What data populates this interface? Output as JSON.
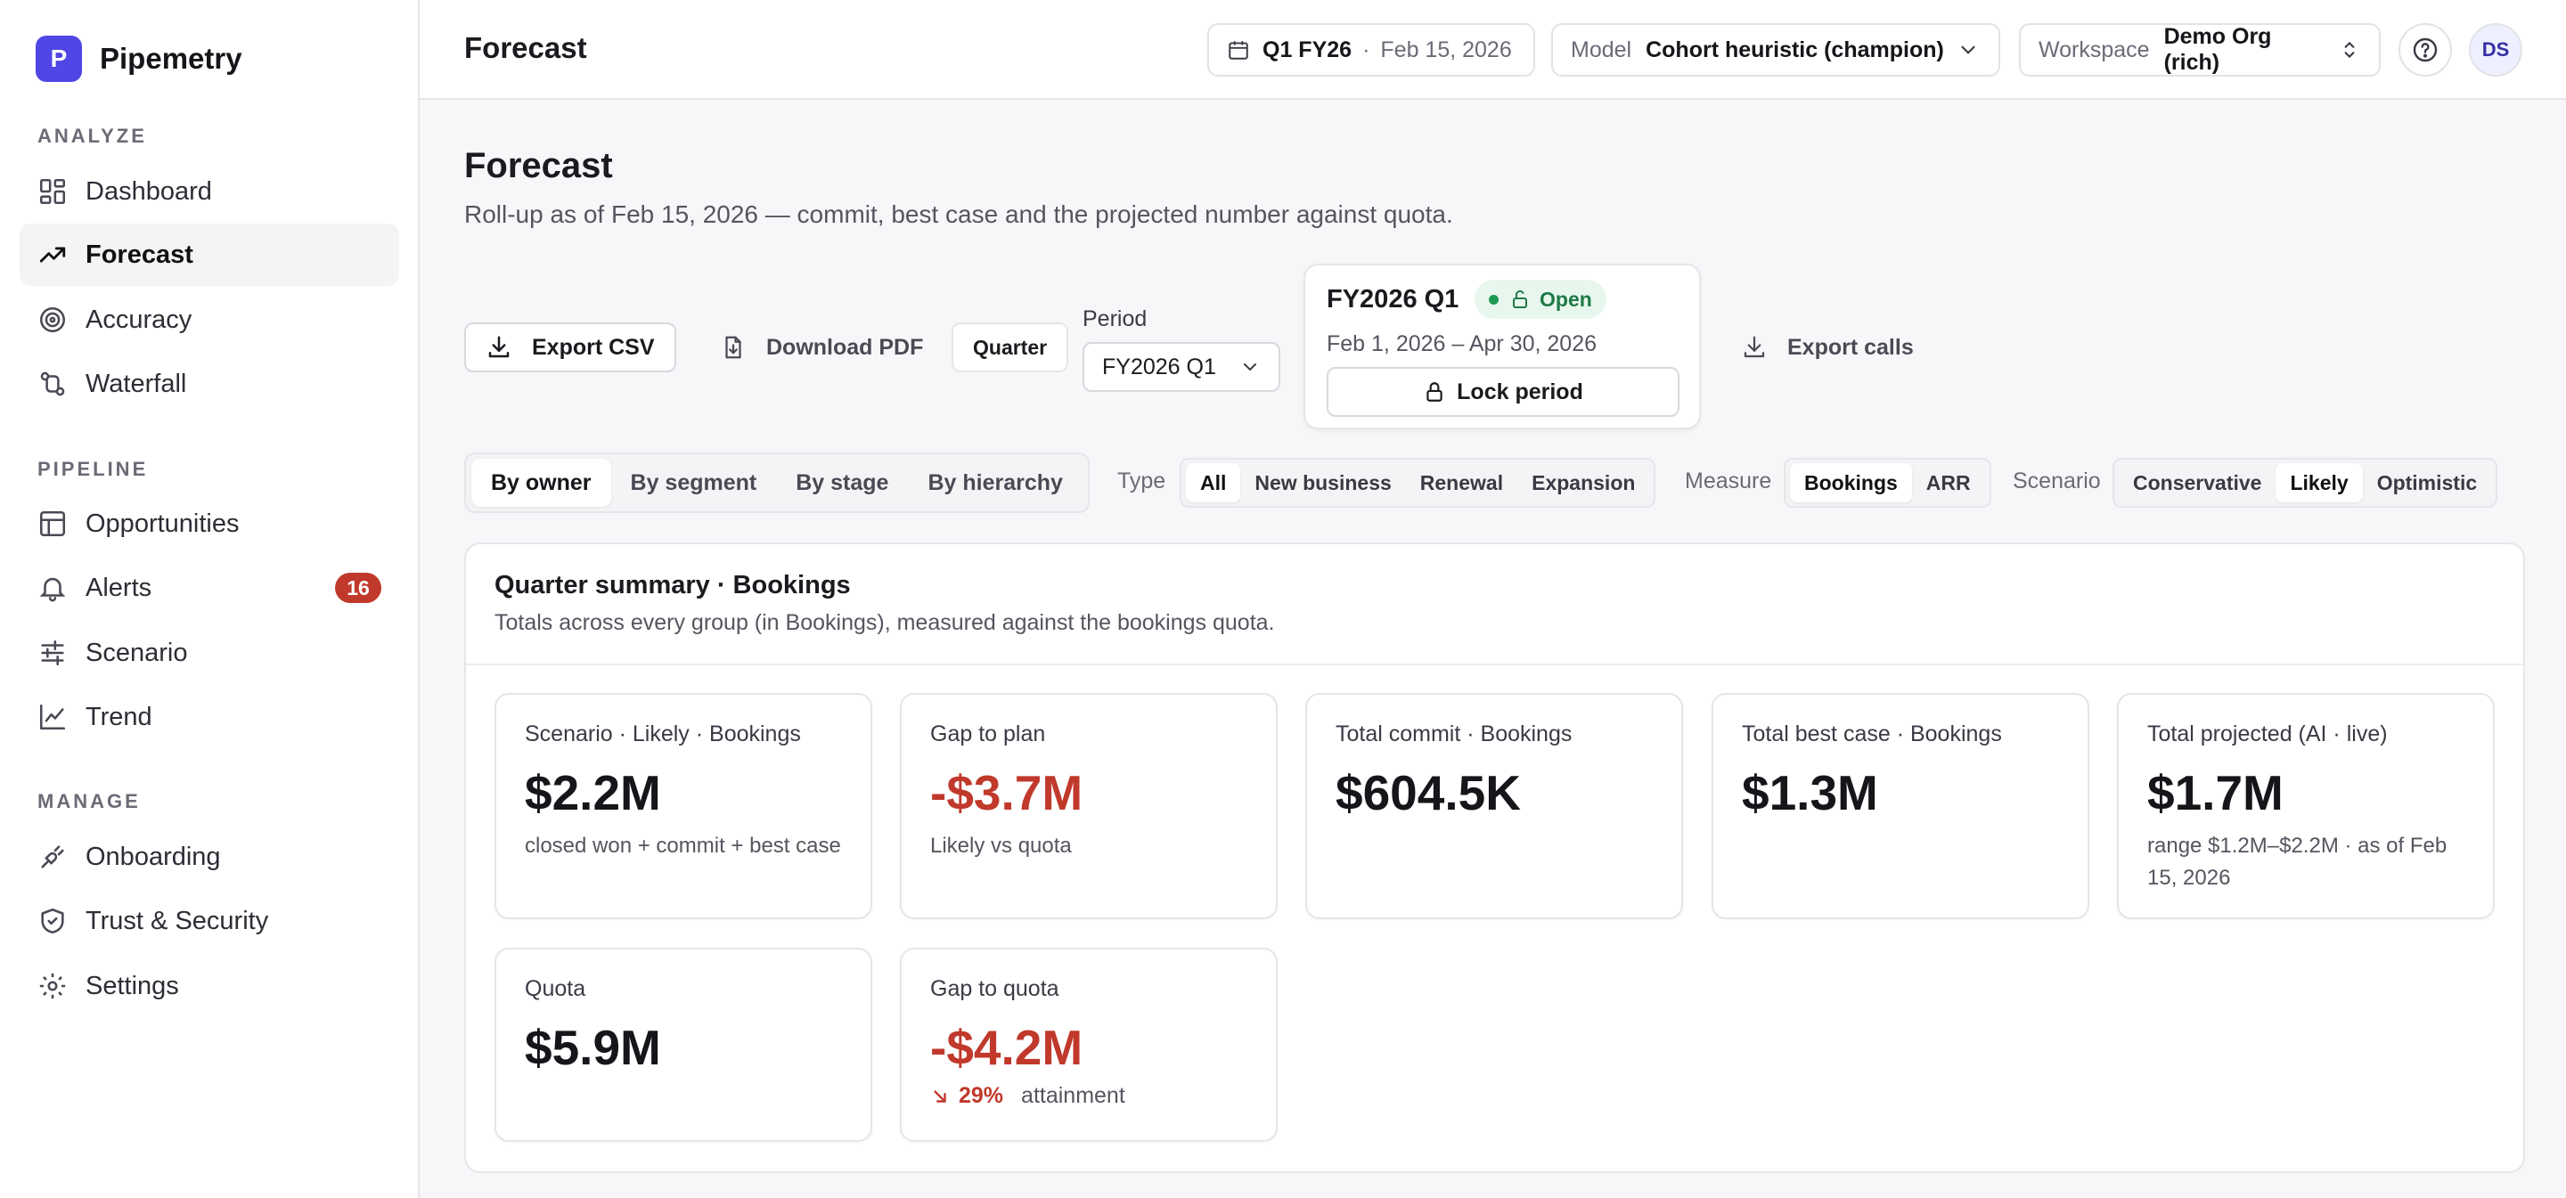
{
  "app": {
    "brand_initial": "P",
    "brand_name": "Pipemetry"
  },
  "sidebar": {
    "sections": [
      {
        "label": "ANALYZE",
        "items": [
          {
            "label": "Dashboard",
            "icon": "dashboard-icon"
          },
          {
            "label": "Forecast",
            "icon": "trending-up-icon",
            "active": true
          },
          {
            "label": "Accuracy",
            "icon": "target-icon"
          },
          {
            "label": "Waterfall",
            "icon": "waterfall-icon"
          }
        ]
      },
      {
        "label": "PIPELINE",
        "items": [
          {
            "label": "Opportunities",
            "icon": "table-icon"
          },
          {
            "label": "Alerts",
            "icon": "bell-icon",
            "badge": "16"
          },
          {
            "label": "Scenario",
            "icon": "sliders-icon"
          },
          {
            "label": "Trend",
            "icon": "line-chart-icon"
          }
        ]
      },
      {
        "label": "MANAGE",
        "items": [
          {
            "label": "Onboarding",
            "icon": "plug-icon"
          },
          {
            "label": "Trust & Security",
            "icon": "shield-icon"
          },
          {
            "label": "Settings",
            "icon": "gear-icon"
          }
        ]
      }
    ]
  },
  "topbar": {
    "title": "Forecast",
    "period_code": "Q1 FY26",
    "separator": "·",
    "period_date": "Feb 15, 2026",
    "model_label": "Model",
    "model_value": "Cohort heuristic (champion)",
    "workspace_label": "Workspace",
    "workspace_value": "Demo Org (rich)",
    "avatar_initials": "DS"
  },
  "page": {
    "title": "Forecast",
    "subtitle": "Roll-up as of Feb 15, 2026 — commit, best case and the projected number against quota."
  },
  "toolbar": {
    "export_csv": "Export CSV",
    "download_pdf": "Download PDF",
    "granularity": "Quarter",
    "period_label": "Period",
    "period_value": "FY2026 Q1",
    "export_calls": "Export calls"
  },
  "period_card": {
    "title": "FY2026 Q1",
    "status": "Open",
    "range": "Feb 1, 2026 – Apr 30, 2026",
    "lock_label": "Lock period"
  },
  "filters": {
    "group_tabs": [
      {
        "label": "By owner",
        "active": true
      },
      {
        "label": "By segment"
      },
      {
        "label": "By stage"
      },
      {
        "label": "By hierarchy"
      }
    ],
    "type_label": "Type",
    "type_options": [
      {
        "label": "All",
        "active": true
      },
      {
        "label": "New business"
      },
      {
        "label": "Renewal"
      },
      {
        "label": "Expansion"
      }
    ],
    "measure_label": "Measure",
    "measure_options": [
      {
        "label": "Bookings",
        "active": true
      },
      {
        "label": "ARR"
      }
    ],
    "scenario_label": "Scenario",
    "scenario_options": [
      {
        "label": "Conservative"
      },
      {
        "label": "Likely",
        "active": true
      },
      {
        "label": "Optimistic"
      }
    ]
  },
  "summary": {
    "title": "Quarter summary · Bookings",
    "subtitle": "Totals across every group (in Bookings), measured against the bookings quota.",
    "cards": [
      {
        "label": "Scenario · Likely · Bookings",
        "value": "$2.2M",
        "note": "closed won + commit + best case"
      },
      {
        "label": "Gap to plan",
        "value": "-$3.7M",
        "note": "Likely vs quota",
        "negative": true
      },
      {
        "label": "Total commit · Bookings",
        "value": "$604.5K",
        "note": ""
      },
      {
        "label": "Total best case · Bookings",
        "value": "$1.3M",
        "note": ""
      },
      {
        "label": "Total projected (AI · live)",
        "value": "$1.7M",
        "note": "range $1.2M–$2.2M · as of Feb 15, 2026"
      },
      {
        "label": "Quota",
        "value": "$5.9M",
        "note": ""
      },
      {
        "label": "Gap to quota",
        "value": "-$4.2M",
        "negative": true,
        "attainment_pct": "29%",
        "attainment_label": "attainment"
      }
    ]
  },
  "colors": {
    "brand": "#4f46e5",
    "negative": "#c0392b",
    "open_badge_bg": "#e8f7ee",
    "open_badge_text": "#1e7a45"
  }
}
